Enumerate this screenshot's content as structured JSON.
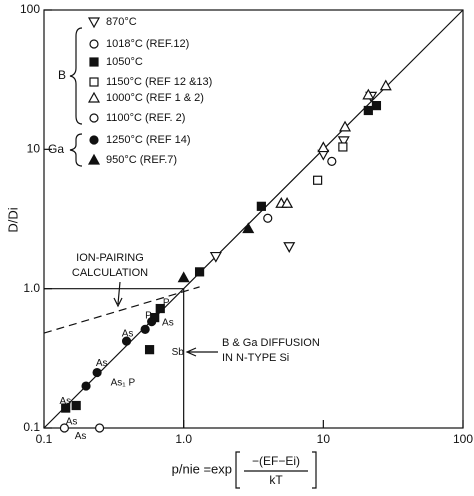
{
  "chart_data": {
    "type": "scatter",
    "log_x": true,
    "log_y": true,
    "ylabel": "D/Di",
    "xlabel": "p/nie =exp",
    "xlabel_numerator": "−(EF−Ei)",
    "xlabel_denominator": "kT",
    "xlim": [
      0.1,
      100
    ],
    "ylim": [
      0.1,
      100
    ],
    "xticks": [
      0.1,
      {
        "value": 1,
        "label": "1.0"
      },
      10,
      100
    ],
    "yticks": [
      0.1,
      {
        "value": 1,
        "label": "1.0"
      },
      10,
      100
    ],
    "legend_groups": [
      {
        "label": "B",
        "series": [
          0,
          1,
          2,
          3,
          4,
          5
        ]
      },
      {
        "label": "Ga",
        "series": [
          6,
          7
        ]
      }
    ],
    "series": [
      {
        "name": "870°C",
        "marker": "triangle-down-open",
        "color": "#111",
        "x": [
          1.7,
          5.7,
          10,
          14,
          22
        ],
        "y": [
          1.7,
          2.0,
          9.2,
          11.5,
          24
        ]
      },
      {
        "name": "1018°C (REF.12)",
        "marker": "circle-open",
        "color": "#111",
        "x": [
          4,
          11.5
        ],
        "y": [
          3.2,
          8.2
        ]
      },
      {
        "name": "1050°C",
        "marker": "square",
        "color": "#111",
        "x": [
          0.143,
          0.17,
          0.57,
          0.62,
          0.68,
          1.3,
          3.6,
          21,
          24
        ],
        "y": [
          0.139,
          0.145,
          0.365,
          0.62,
          0.72,
          1.32,
          3.9,
          19,
          20.6
        ]
      },
      {
        "name": "1150°C (REF 12 &13)",
        "marker": "square-open",
        "color": "#111",
        "x": [
          9.1,
          13.8
        ],
        "y": [
          6.0,
          10.4
        ]
      },
      {
        "name": "1000°C (REF 1 & 2)",
        "marker": "triangle-open",
        "color": "#111",
        "x": [
          5,
          5.5,
          10,
          14.3,
          21,
          28
        ],
        "y": [
          4.1,
          4.1,
          10.3,
          14.5,
          24.6,
          28.6
        ]
      },
      {
        "name": "1100°C (REF. 2)",
        "marker": "circle-open",
        "color": "#111",
        "x": [
          0.14,
          0.25
        ],
        "y": [
          0.1,
          0.1
        ]
      },
      {
        "name": "1250°C (REF 14)",
        "marker": "circle",
        "color": "#111",
        "x": [
          0.2,
          0.24,
          0.39,
          0.53,
          0.59
        ],
        "y": [
          0.2,
          0.25,
          0.42,
          0.51,
          0.58
        ]
      },
      {
        "name": "950°C (REF.7)",
        "marker": "triangle",
        "color": "#111",
        "x": [
          1.0,
          2.9
        ],
        "y": [
          1.2,
          2.7
        ]
      }
    ],
    "lines": [
      {
        "style": "solid",
        "x": [
          0.1,
          100
        ],
        "y": [
          0.1,
          100
        ]
      },
      {
        "style": "dashed",
        "x": [
          0.1,
          1.3
        ],
        "y": [
          0.48,
          1.03
        ]
      },
      {
        "style": "solid",
        "x": [
          0.1,
          1,
          1
        ],
        "y": [
          1,
          1,
          0.1
        ]
      }
    ],
    "annotations": [
      {
        "lines": [
          "ION-PAIRING",
          "CALCULATION"
        ]
      },
      {
        "lines": [
          "B & Ga DIFFUSION",
          "IN N-TYPE Si"
        ]
      }
    ],
    "point_labels": [
      {
        "text": "As",
        "x": 0.129,
        "y": 0.155
      },
      {
        "text": "As",
        "x": 0.143,
        "y": 0.111
      },
      {
        "text": "As",
        "x": 0.166,
        "y": 0.087
      },
      {
        "text": "As",
        "x": 0.235,
        "y": 0.29
      },
      {
        "text": "As₁ P",
        "x": 0.3,
        "y": 0.21
      },
      {
        "text": "As",
        "x": 0.36,
        "y": 0.475
      },
      {
        "text": "P",
        "x": 0.53,
        "y": 0.64
      },
      {
        "text": "P",
        "x": 0.71,
        "y": 0.79
      },
      {
        "text": "As",
        "x": 0.7,
        "y": 0.57
      },
      {
        "text": "Sb",
        "x": 0.82,
        "y": 0.35
      }
    ]
  }
}
